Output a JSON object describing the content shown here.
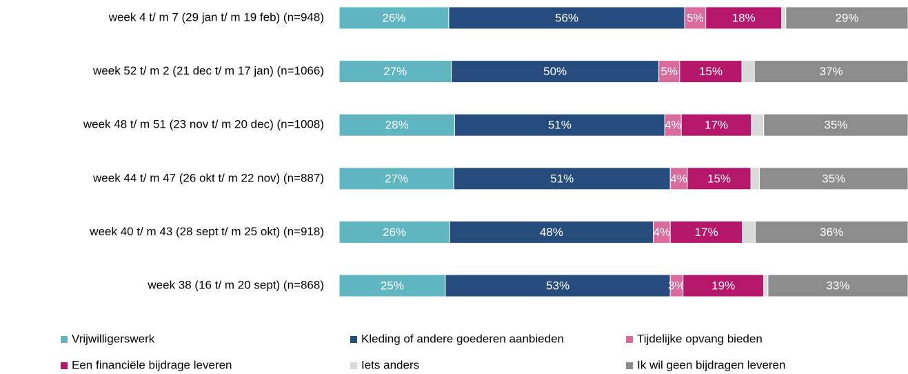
{
  "chart_data": {
    "type": "stacked_bar_normalized",
    "categories": [
      "week 4 t/ m 7 (29 jan t/ m 19 feb) (n=948)",
      "week 52 t/ m 2 (21 dec t/ m 17 jan) (n=1066)",
      "week 48 t/ m 51 (23 nov t/ m 20 dec) (n=1008)",
      "week 44 t/ m 47 (26 okt t/ m 22 nov) (n=887)",
      "week 40 t/ m 43 (28 sept t/ m 25 okt) (n=918)",
      "week 38 (16 t/ m 20 sept) (n=868)"
    ],
    "series": [
      {
        "name": "Vrijwilligerswerk",
        "color": "#5fb6c1",
        "values": [
          26,
          27,
          28,
          27,
          26,
          25
        ],
        "value_labels": [
          "26%",
          "27%",
          "28%",
          "27%",
          "26%",
          "25%"
        ]
      },
      {
        "name": "Kleding of andere goederen aanbieden",
        "color": "#264c7e",
        "values": [
          56,
          50,
          51,
          51,
          48,
          53
        ],
        "value_labels": [
          "56%",
          "50%",
          "51%",
          "51%",
          "48%",
          "53%"
        ]
      },
      {
        "name": "Tijdelijke opvang bieden",
        "color": "#d96a9c",
        "values": [
          5,
          5,
          4,
          4,
          4,
          3
        ],
        "value_labels": [
          "5%",
          "5%",
          "4%",
          "4%",
          "4%",
          "3%"
        ]
      },
      {
        "name": "Een financiële bijdrage leveren",
        "color": "#b5176b",
        "values": [
          18,
          15,
          17,
          15,
          17,
          19
        ],
        "value_labels": [
          "18%",
          "15%",
          "17%",
          "15%",
          "17%",
          "19%"
        ]
      },
      {
        "name": "Iets anders",
        "color": "#d9d9d9",
        "values": [
          1,
          3,
          3,
          2,
          3,
          1
        ]
      },
      {
        "name": "Ik wil geen bijdragen leveren",
        "color": "#8c8c8c",
        "values": [
          29,
          37,
          35,
          35,
          36,
          33
        ],
        "value_labels": [
          "29%",
          "37%",
          "35%",
          "35%",
          "36%",
          "33%"
        ]
      }
    ]
  }
}
